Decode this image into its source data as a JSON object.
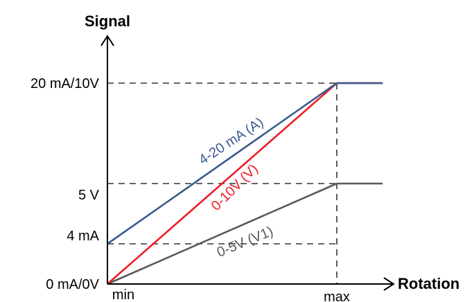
{
  "chart_data": {
    "type": "line",
    "xlabel": "Rotation",
    "ylabel": "Signal",
    "x_ticks": [
      "min",
      "max"
    ],
    "y_ticks": [
      "0 mA/0V",
      "4 mA",
      "5 V",
      "20 mA/10V"
    ],
    "x": [
      0,
      1,
      1.2
    ],
    "series": [
      {
        "name": "4-20 mA (A)",
        "values": [
          4,
          20,
          20
        ],
        "color": "#3a5a8c"
      },
      {
        "name": "0-10V (V)",
        "values": [
          0,
          20,
          20
        ],
        "color": "#ee1c25"
      },
      {
        "name": "0-5V (V1)",
        "values": [
          0,
          10,
          10
        ],
        "color": "#595959"
      }
    ],
    "xlim": [
      0,
      1.2
    ],
    "ylim": [
      0,
      20
    ],
    "grid": false,
    "reference_lines": "dashed guides at 4 mA, 5 V, 20 mA/10V and at max",
    "legend": "none"
  }
}
